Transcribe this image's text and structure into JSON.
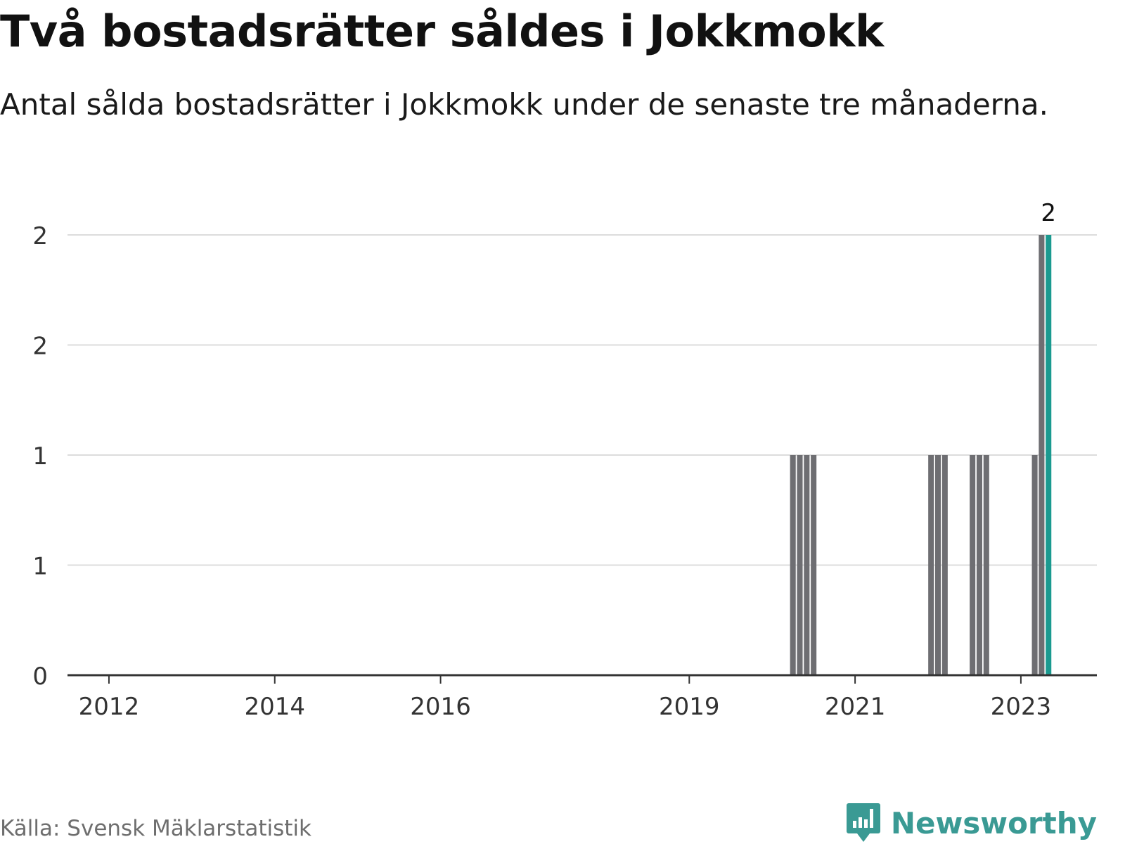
{
  "title": "Två bostadsrätter såldes i Jokkmokk",
  "subtitle": "Antal sålda bostadsrätter i Jokkmokk under de senaste tre månaderna.",
  "source": "Källa: Svensk Mäklarstatistik",
  "brand": {
    "name": "Newsworthy",
    "logo_icon": "newsworthy-chart-bubble-icon",
    "color": "#3a9a94"
  },
  "chart_data": {
    "type": "bar",
    "title": "",
    "xlabel": "",
    "ylabel": "",
    "ylim": [
      0,
      2
    ],
    "grid": true,
    "y_ticks": [
      {
        "value": 0,
        "label": "0"
      },
      {
        "value": 0.5,
        "label": "1"
      },
      {
        "value": 1,
        "label": "1"
      },
      {
        "value": 1.5,
        "label": "2"
      },
      {
        "value": 2,
        "label": "2"
      }
    ],
    "x_ticks": [
      {
        "value": "2012",
        "label": "2012"
      },
      {
        "value": "2014",
        "label": "2014"
      },
      {
        "value": "2016",
        "label": "2016"
      },
      {
        "value": "2019",
        "label": "2019"
      },
      {
        "value": "2021",
        "label": "2021"
      },
      {
        "value": "2023",
        "label": "2023"
      }
    ],
    "x_range": [
      "2011-07",
      "2023-12"
    ],
    "bar_color": "#6e6e72",
    "highlight_color": "#1a9a90",
    "bars": [
      {
        "period": "2020-04",
        "value": 1
      },
      {
        "period": "2020-05",
        "value": 1
      },
      {
        "period": "2020-06",
        "value": 1
      },
      {
        "period": "2020-07",
        "value": 1
      },
      {
        "period": "2021-12",
        "value": 1
      },
      {
        "period": "2022-01",
        "value": 1
      },
      {
        "period": "2022-02",
        "value": 1
      },
      {
        "period": "2022-06",
        "value": 1
      },
      {
        "period": "2022-07",
        "value": 1
      },
      {
        "period": "2022-08",
        "value": 1
      },
      {
        "period": "2023-03",
        "value": 1
      },
      {
        "period": "2023-04",
        "value": 2
      },
      {
        "period": "2023-05",
        "value": 2,
        "highlight": true,
        "label": "2"
      }
    ]
  }
}
